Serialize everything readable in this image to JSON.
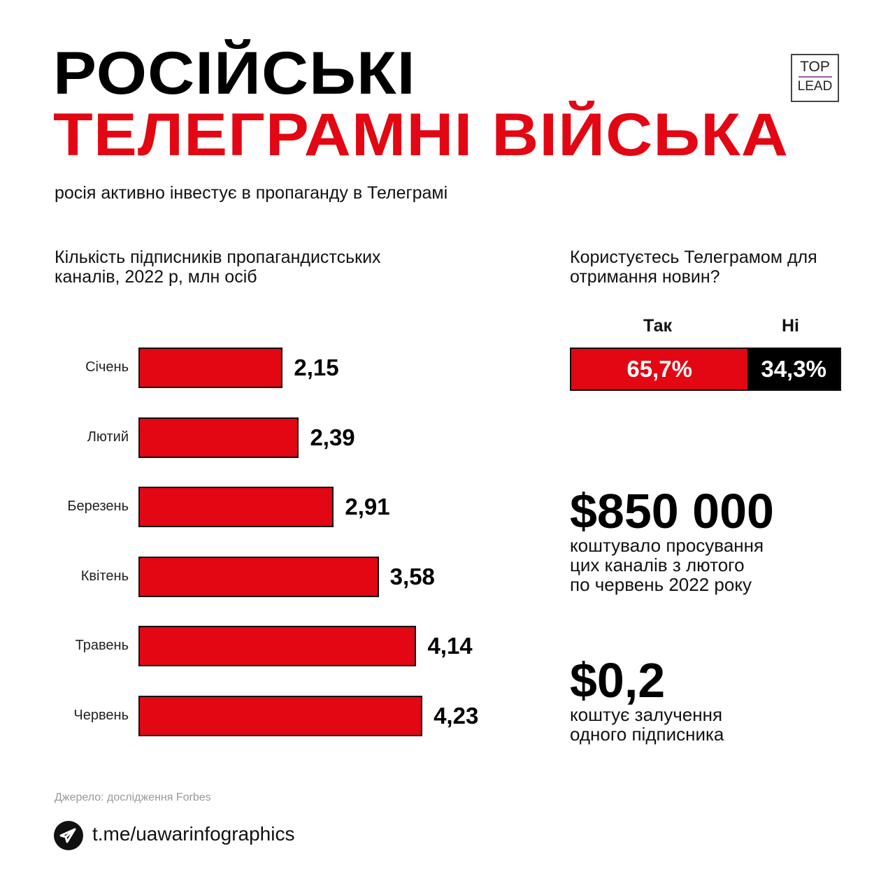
{
  "header": {
    "title_line1": "РОСІЙСЬКІ",
    "title_line2": "ТЕЛЕГРАМНІ ВІЙСЬКА",
    "subtitle": "росія активно інвестує в пропаганду в Телеграмі",
    "logo_top": "TOP",
    "logo_bottom": "LEAD"
  },
  "chart_data": {
    "type": "bar",
    "orientation": "horizontal",
    "title": "Кількість підписників пропагандистських каналів, 2022 р, млн осіб",
    "categories": [
      "Січень",
      "Лютий",
      "Березень",
      "Квітень",
      "Травень",
      "Червень"
    ],
    "values": [
      2.15,
      2.39,
      2.91,
      3.58,
      4.14,
      4.23
    ],
    "labels": [
      "2,15",
      "2,39",
      "2,91",
      "3,58",
      "4,14",
      "4,23"
    ],
    "xlim": [
      0,
      4.5
    ],
    "color": "#e30613"
  },
  "survey": {
    "question": "Користуєтесь Телеграмом для отримання новин?",
    "yes_label": "Так",
    "no_label": "Ні",
    "yes_value": 65.7,
    "no_value": 34.3,
    "yes_text": "65,7%",
    "no_text": "34,3%"
  },
  "stats": [
    {
      "value": "$850 000",
      "desc": [
        "коштувало просування",
        "цих каналів з лютого",
        "по червень 2022 року"
      ]
    },
    {
      "value": "$0,2",
      "desc": [
        "коштує залучення",
        "одного підписника"
      ]
    }
  ],
  "footer": {
    "source": "Джерело: дослідження Forbes",
    "link": "t.me/uawarinfographics"
  }
}
